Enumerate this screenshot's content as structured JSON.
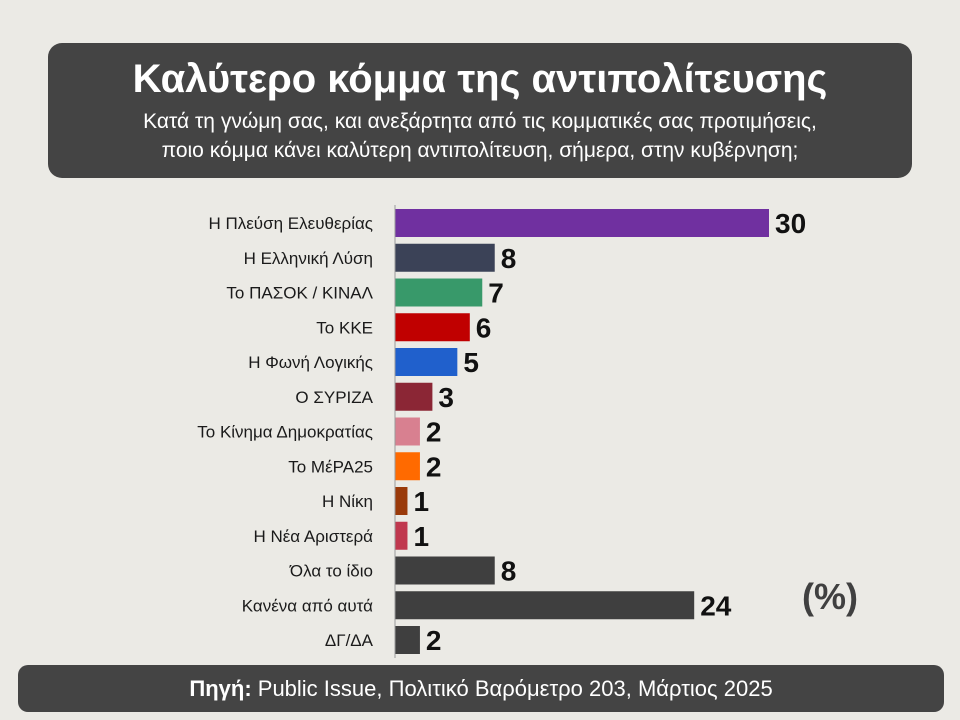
{
  "header": {
    "title": "Καλύτερο κόμμα της αντιπολίτευσης",
    "subtitle_line1": "Κατά τη γνώμη σας, και ανεξάρτητα από τις κομματικές σας προτιμήσεις,",
    "subtitle_line2": "ποιο κόμμα κάνει καλύτερη αντιπολίτευση, σήμερα, στην κυβέρνηση;"
  },
  "unit_label": "(%)",
  "footer": {
    "source_label": "Πηγή:",
    "source_text": "Public Issue, Πολιτικό Βαρόμετρο 203, Μάρτιος 2025"
  },
  "chart_data": {
    "type": "bar",
    "orientation": "horizontal",
    "title": "Καλύτερο κόμμα της αντιπολίτευσης",
    "categories": [
      "Η Πλεύση Ελευθερίας",
      "Η Ελληνική Λύση",
      "Το ΠΑΣΟΚ / ΚΙΝΑΛ",
      "Το ΚΚΕ",
      "Η Φωνή Λογικής",
      "Ο ΣΥΡΙΖΑ",
      "Το Κίνημα Δημοκρατίας",
      "Το ΜέΡΑ25",
      "Η Νίκη",
      "Η Νέα Αριστερά",
      "Όλα το ίδιο",
      "Κανένα από αυτά",
      "ΔΓ/ΔΑ"
    ],
    "values": [
      30,
      8,
      7,
      6,
      5,
      3,
      2,
      2,
      1,
      1,
      8,
      24,
      2
    ],
    "colors": [
      "#7030a0",
      "#3b4257",
      "#38996a",
      "#c00000",
      "#2060cc",
      "#8b2635",
      "#d88090",
      "#ff6a00",
      "#9a3a0a",
      "#c0384e",
      "#3f3f3f",
      "#3f3f3f",
      "#3f3f3f"
    ],
    "xlim": [
      0,
      30
    ],
    "data_labels": true,
    "grid": false,
    "legend": "none"
  }
}
